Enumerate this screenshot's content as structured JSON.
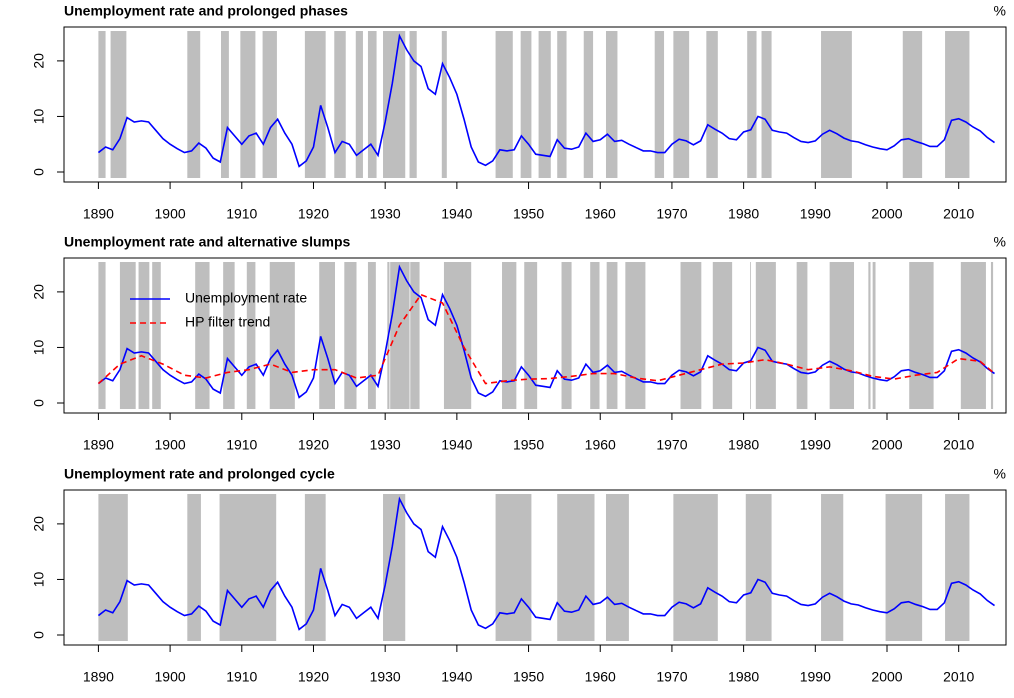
{
  "chart_data": [
    {
      "type": "line",
      "title": "Unemployment rate and prolonged phases",
      "unit_label": "%",
      "x": [
        1890,
        1891,
        1892,
        1893,
        1894,
        1895,
        1896,
        1897,
        1898,
        1899,
        1900,
        1901,
        1902,
        1903,
        1904,
        1905,
        1906,
        1907,
        1908,
        1909,
        1910,
        1911,
        1912,
        1913,
        1914,
        1915,
        1916,
        1917,
        1918,
        1919,
        1920,
        1921,
        1922,
        1923,
        1924,
        1925,
        1926,
        1927,
        1928,
        1929,
        1930,
        1931,
        1932,
        1933,
        1934,
        1935,
        1936,
        1937,
        1938,
        1939,
        1940,
        1941,
        1942,
        1943,
        1944,
        1945,
        1946,
        1947,
        1948,
        1949,
        1950,
        1951,
        1952,
        1953,
        1954,
        1955,
        1956,
        1957,
        1958,
        1959,
        1960,
        1961,
        1962,
        1963,
        1964,
        1965,
        1966,
        1967,
        1968,
        1969,
        1970,
        1971,
        1972,
        1973,
        1974,
        1975,
        1976,
        1977,
        1978,
        1979,
        1980,
        1981,
        1982,
        1983,
        1984,
        1985,
        1986,
        1987,
        1988,
        1989,
        1990,
        1991,
        1992,
        1993,
        1994,
        1995,
        1996,
        1997,
        1998,
        1999,
        2000,
        2001,
        2002,
        2003,
        2004,
        2005,
        2006,
        2007,
        2008,
        2009,
        2010,
        2011,
        2012,
        2013,
        2014,
        2015
      ],
      "series": [
        {
          "color": "#0000ff",
          "line_style": "solid",
          "values": [
            3.5,
            4.5,
            4,
            6,
            9.8,
            9,
            9.2,
            9,
            7.5,
            6,
            5,
            4.2,
            3.5,
            3.8,
            5.2,
            4.3,
            2.5,
            1.8,
            8,
            6.5,
            5,
            6.5,
            7,
            5,
            8,
            9.5,
            7,
            5,
            1,
            2,
            4.5,
            12,
            8,
            3.5,
            5.5,
            5,
            3,
            4,
            5,
            3,
            9,
            16,
            24.5,
            22,
            20,
            19,
            15,
            14,
            19.5,
            17,
            14,
            9.5,
            4.5,
            1.8,
            1.2,
            2,
            4,
            3.8,
            4,
            6.5,
            5,
            3.2,
            3,
            2.8,
            5.8,
            4.3,
            4.1,
            4.5,
            7,
            5.5,
            5.8,
            6.8,
            5.5,
            5.7,
            5,
            4.4,
            3.8,
            3.8,
            3.5,
            3.5,
            5,
            5.9,
            5.6,
            4.9,
            5.6,
            8.5,
            7.7,
            7,
            6,
            5.8,
            7.2,
            7.6,
            10,
            9.5,
            7.5,
            7.2,
            7,
            6.2,
            5.5,
            5.3,
            5.6,
            6.8,
            7.5,
            6.9,
            6.1,
            5.6,
            5.4,
            4.9,
            4.5,
            4.2,
            4,
            4.7,
            5.8,
            6,
            5.5,
            5.1,
            4.6,
            4.6,
            5.8,
            9.3,
            9.6,
            9,
            8.1,
            7.4,
            6.2,
            5.3
          ]
        }
      ],
      "shaded": [
        [
          1890,
          1891
        ],
        [
          1891.7,
          1893.9
        ],
        [
          1902.4,
          1904.2
        ],
        [
          1907.1,
          1908.2
        ],
        [
          1909.8,
          1911.9
        ],
        [
          1912.9,
          1914.9
        ],
        [
          1918.8,
          1921.7
        ],
        [
          1922.9,
          1924.5
        ],
        [
          1925.9,
          1926.9
        ],
        [
          1927.6,
          1928.8
        ],
        [
          1929.7,
          1932.8
        ],
        [
          1933.4,
          1934.4
        ],
        [
          1937.9,
          1938.6
        ],
        [
          1945.4,
          1947.8
        ],
        [
          1948.9,
          1950.4
        ],
        [
          1951.4,
          1953.1
        ],
        [
          1954,
          1955.3
        ],
        [
          1957.7,
          1959
        ],
        [
          1960.8,
          1962.4
        ],
        [
          1967.6,
          1968.9
        ],
        [
          1970.2,
          1972.4
        ],
        [
          1974.8,
          1976.4
        ],
        [
          1980.5,
          1981.8
        ],
        [
          1982.5,
          1983.9
        ],
        [
          1990.8,
          1995.1
        ],
        [
          2002.2,
          2004.9
        ],
        [
          2008.1,
          2011.5
        ]
      ],
      "shade_color": "#bebebe",
      "xlim": [
        1885.2,
        2016.6
      ],
      "xticks": [
        1890,
        1900,
        1910,
        1920,
        1930,
        1940,
        1950,
        1960,
        1970,
        1980,
        1990,
        2000,
        2010
      ],
      "ylim": [
        -1.8,
        26.1
      ],
      "yticks": [
        0,
        10,
        20
      ]
    },
    {
      "type": "line",
      "title": "Unemployment rate and alternative slumps",
      "unit_label": "%",
      "x": [
        1890,
        1891,
        1892,
        1893,
        1894,
        1895,
        1896,
        1897,
        1898,
        1899,
        1900,
        1901,
        1902,
        1903,
        1904,
        1905,
        1906,
        1907,
        1908,
        1909,
        1910,
        1911,
        1912,
        1913,
        1914,
        1915,
        1916,
        1917,
        1918,
        1919,
        1920,
        1921,
        1922,
        1923,
        1924,
        1925,
        1926,
        1927,
        1928,
        1929,
        1930,
        1931,
        1932,
        1933,
        1934,
        1935,
        1936,
        1937,
        1938,
        1939,
        1940,
        1941,
        1942,
        1943,
        1944,
        1945,
        1946,
        1947,
        1948,
        1949,
        1950,
        1951,
        1952,
        1953,
        1954,
        1955,
        1956,
        1957,
        1958,
        1959,
        1960,
        1961,
        1962,
        1963,
        1964,
        1965,
        1966,
        1967,
        1968,
        1969,
        1970,
        1971,
        1972,
        1973,
        1974,
        1975,
        1976,
        1977,
        1978,
        1979,
        1980,
        1981,
        1982,
        1983,
        1984,
        1985,
        1986,
        1987,
        1988,
        1989,
        1990,
        1991,
        1992,
        1993,
        1994,
        1995,
        1996,
        1997,
        1998,
        1999,
        2000,
        2001,
        2002,
        2003,
        2004,
        2005,
        2006,
        2007,
        2008,
        2009,
        2010,
        2011,
        2012,
        2013,
        2014,
        2015
      ],
      "series": [
        {
          "name": "Unemployment rate",
          "color": "#0000ff",
          "line_style": "solid",
          "values": [
            3.5,
            4.5,
            4,
            6,
            9.8,
            9,
            9.2,
            9,
            7.5,
            6,
            5,
            4.2,
            3.5,
            3.8,
            5.2,
            4.3,
            2.5,
            1.8,
            8,
            6.5,
            5,
            6.5,
            7,
            5,
            8,
            9.5,
            7,
            5,
            1,
            2,
            4.5,
            12,
            8,
            3.5,
            5.5,
            5,
            3,
            4,
            5,
            3,
            9,
            16,
            24.5,
            22,
            20,
            19,
            15,
            14,
            19.5,
            17,
            14,
            9.5,
            4.5,
            1.8,
            1.2,
            2,
            4,
            3.8,
            4,
            6.5,
            5,
            3.2,
            3,
            2.8,
            5.8,
            4.3,
            4.1,
            4.5,
            7,
            5.5,
            5.8,
            6.8,
            5.5,
            5.7,
            5,
            4.4,
            3.8,
            3.8,
            3.5,
            3.5,
            5,
            5.9,
            5.6,
            4.9,
            5.6,
            8.5,
            7.7,
            7,
            6,
            5.8,
            7.2,
            7.6,
            10,
            9.5,
            7.5,
            7.2,
            7,
            6.2,
            5.5,
            5.3,
            5.6,
            6.8,
            7.5,
            6.9,
            6.1,
            5.6,
            5.4,
            4.9,
            4.5,
            4.2,
            4,
            4.7,
            5.8,
            6,
            5.5,
            5.1,
            4.6,
            4.6,
            5.8,
            9.3,
            9.6,
            9,
            8.1,
            7.4,
            6.2,
            5.3
          ]
        },
        {
          "name": "HP filter trend",
          "color": "#ff0000",
          "line_style": "dashed",
          "x": [
            1890,
            1893,
            1896,
            1899,
            1902,
            1905,
            1908,
            1911,
            1914,
            1917,
            1920,
            1923,
            1926,
            1929,
            1932,
            1935,
            1938,
            1941,
            1944,
            1947,
            1950,
            1953,
            1956,
            1959,
            1962,
            1965,
            1968,
            1971,
            1974,
            1977,
            1980,
            1983,
            1986,
            1989,
            1992,
            1995,
            1998,
            2001,
            2004,
            2007,
            2010,
            2013,
            2015
          ],
          "values": [
            3.5,
            7,
            8.5,
            7,
            5,
            4.5,
            5.5,
            6,
            7,
            5.5,
            6,
            6,
            4.5,
            5,
            14,
            19.5,
            18,
            10,
            3.5,
            4,
            4.3,
            4.4,
            4.8,
            5.3,
            5.3,
            4.5,
            4,
            5,
            6,
            7,
            7.2,
            7.8,
            7,
            6,
            6.5,
            5.8,
            4.8,
            4.3,
            5,
            5.5,
            8,
            7.5,
            5.3
          ]
        }
      ],
      "shaded": [
        [
          1890,
          1891
        ],
        [
          1893,
          1895.2
        ],
        [
          1895.6,
          1897.1
        ],
        [
          1897.5,
          1898.7
        ],
        [
          1903.5,
          1905.5
        ],
        [
          1907.4,
          1909
        ],
        [
          1910.7,
          1911.9
        ],
        [
          1913.9,
          1917.4
        ],
        [
          1920.8,
          1923
        ],
        [
          1924.3,
          1926
        ],
        [
          1927.6,
          1928.7
        ],
        [
          1930.3,
          1930.6
        ],
        [
          1930.7,
          1933.4
        ],
        [
          1933.5,
          1934.8
        ],
        [
          1938.2,
          1942
        ],
        [
          1946.3,
          1948.3
        ],
        [
          1949.4,
          1951.2
        ],
        [
          1954.6,
          1956
        ],
        [
          1958.6,
          1959.9
        ],
        [
          1960.9,
          1962.4
        ],
        [
          1963.5,
          1966.3
        ],
        [
          1971.2,
          1974.1
        ],
        [
          1975.7,
          1978.4
        ],
        [
          1980.9,
          1981
        ],
        [
          1981.7,
          1984.5
        ],
        [
          1987.4,
          1988.9
        ],
        [
          1992,
          1995.4
        ],
        [
          1997.4,
          1997.7
        ],
        [
          1998,
          1998.4
        ],
        [
          2003.1,
          2006.5
        ],
        [
          2010.3,
          2013.8
        ],
        [
          2014.5,
          2014.8
        ]
      ],
      "shade_color": "#bebebe",
      "legend": "topleft",
      "xlim": [
        1885.2,
        2016.6
      ],
      "xticks": [
        1890,
        1900,
        1910,
        1920,
        1930,
        1940,
        1950,
        1960,
        1970,
        1980,
        1990,
        2000,
        2010
      ],
      "ylim": [
        -1.8,
        26.1
      ],
      "yticks": [
        0,
        10,
        20
      ]
    },
    {
      "type": "line",
      "title": "Unemployment rate and prolonged cycle",
      "unit_label": "%",
      "x": [
        1890,
        1891,
        1892,
        1893,
        1894,
        1895,
        1896,
        1897,
        1898,
        1899,
        1900,
        1901,
        1902,
        1903,
        1904,
        1905,
        1906,
        1907,
        1908,
        1909,
        1910,
        1911,
        1912,
        1913,
        1914,
        1915,
        1916,
        1917,
        1918,
        1919,
        1920,
        1921,
        1922,
        1923,
        1924,
        1925,
        1926,
        1927,
        1928,
        1929,
        1930,
        1931,
        1932,
        1933,
        1934,
        1935,
        1936,
        1937,
        1938,
        1939,
        1940,
        1941,
        1942,
        1943,
        1944,
        1945,
        1946,
        1947,
        1948,
        1949,
        1950,
        1951,
        1952,
        1953,
        1954,
        1955,
        1956,
        1957,
        1958,
        1959,
        1960,
        1961,
        1962,
        1963,
        1964,
        1965,
        1966,
        1967,
        1968,
        1969,
        1970,
        1971,
        1972,
        1973,
        1974,
        1975,
        1976,
        1977,
        1978,
        1979,
        1980,
        1981,
        1982,
        1983,
        1984,
        1985,
        1986,
        1987,
        1988,
        1989,
        1990,
        1991,
        1992,
        1993,
        1994,
        1995,
        1996,
        1997,
        1998,
        1999,
        2000,
        2001,
        2002,
        2003,
        2004,
        2005,
        2006,
        2007,
        2008,
        2009,
        2010,
        2011,
        2012,
        2013,
        2014,
        2015
      ],
      "series": [
        {
          "color": "#0000ff",
          "line_style": "solid",
          "values": [
            3.5,
            4.5,
            4,
            6,
            9.8,
            9,
            9.2,
            9,
            7.5,
            6,
            5,
            4.2,
            3.5,
            3.8,
            5.2,
            4.3,
            2.5,
            1.8,
            8,
            6.5,
            5,
            6.5,
            7,
            5,
            8,
            9.5,
            7,
            5,
            1,
            2,
            4.5,
            12,
            8,
            3.5,
            5.5,
            5,
            3,
            4,
            5,
            3,
            9,
            16,
            24.5,
            22,
            20,
            19,
            15,
            14,
            19.5,
            17,
            14,
            9.5,
            4.5,
            1.8,
            1.2,
            2,
            4,
            3.8,
            4,
            6.5,
            5,
            3.2,
            3,
            2.8,
            5.8,
            4.3,
            4.1,
            4.5,
            7,
            5.5,
            5.8,
            6.8,
            5.5,
            5.7,
            5,
            4.4,
            3.8,
            3.8,
            3.5,
            3.5,
            5,
            5.9,
            5.6,
            4.9,
            5.6,
            8.5,
            7.7,
            7,
            6,
            5.8,
            7.2,
            7.6,
            10,
            9.5,
            7.5,
            7.2,
            7,
            6.2,
            5.5,
            5.3,
            5.6,
            6.8,
            7.5,
            6.9,
            6.1,
            5.6,
            5.4,
            4.9,
            4.5,
            4.2,
            4,
            4.7,
            5.8,
            6,
            5.5,
            5.1,
            4.6,
            4.6,
            5.8,
            9.3,
            9.6,
            9,
            8.1,
            7.4,
            6.2,
            5.3
          ]
        }
      ],
      "shaded": [
        [
          1890,
          1894.1
        ],
        [
          1902.4,
          1904.3
        ],
        [
          1906.9,
          1914.8
        ],
        [
          1918.8,
          1921.7
        ],
        [
          1929.7,
          1932.8
        ],
        [
          1945.4,
          1950.4
        ],
        [
          1954,
          1959.2
        ],
        [
          1960.8,
          1964
        ],
        [
          1970.2,
          1976.4
        ],
        [
          1980.3,
          1983.9
        ],
        [
          1990.8,
          1993.9
        ],
        [
          1999.8,
          2004.9
        ],
        [
          2008.1,
          2011.5
        ]
      ],
      "shade_color": "#bebebe",
      "xlim": [
        1885.2,
        2016.6
      ],
      "xticks": [
        1890,
        1900,
        1910,
        1920,
        1930,
        1940,
        1950,
        1960,
        1970,
        1980,
        1990,
        2000,
        2010
      ],
      "ylim": [
        -1.8,
        26.1
      ],
      "yticks": [
        0,
        10,
        20
      ]
    }
  ]
}
